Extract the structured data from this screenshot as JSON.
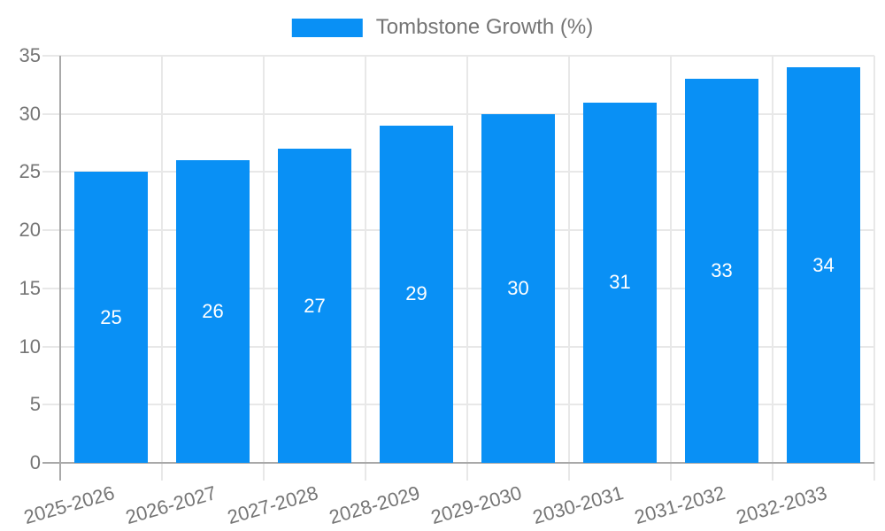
{
  "legend": {
    "label": "Tombstone Growth (%)"
  },
  "chart_data": {
    "type": "bar",
    "title": "",
    "xlabel": "",
    "ylabel": "",
    "categories": [
      "2025-2026",
      "2026-2027",
      "2027-2028",
      "2028-2029",
      "2029-2030",
      "2030-2031",
      "2031-2032",
      "2032-2033"
    ],
    "series": [
      {
        "name": "Tombstone Growth (%)",
        "values": [
          25,
          26,
          27,
          29,
          30,
          31,
          33,
          34
        ]
      }
    ],
    "value_labels": [
      "25",
      "26",
      "27",
      "29",
      "30",
      "31",
      "33",
      "34"
    ],
    "ylim": [
      0,
      35
    ],
    "yticks": [
      0,
      5,
      10,
      15,
      20,
      25,
      30,
      35
    ],
    "grid": true,
    "legend_position": "top-center",
    "colors": {
      "bar": "#0990f5",
      "axis": "#a9a9a9",
      "grid": "#e8e8e8",
      "text": "#757575",
      "value_label": "#ffffff",
      "background": "#ffffff"
    }
  }
}
